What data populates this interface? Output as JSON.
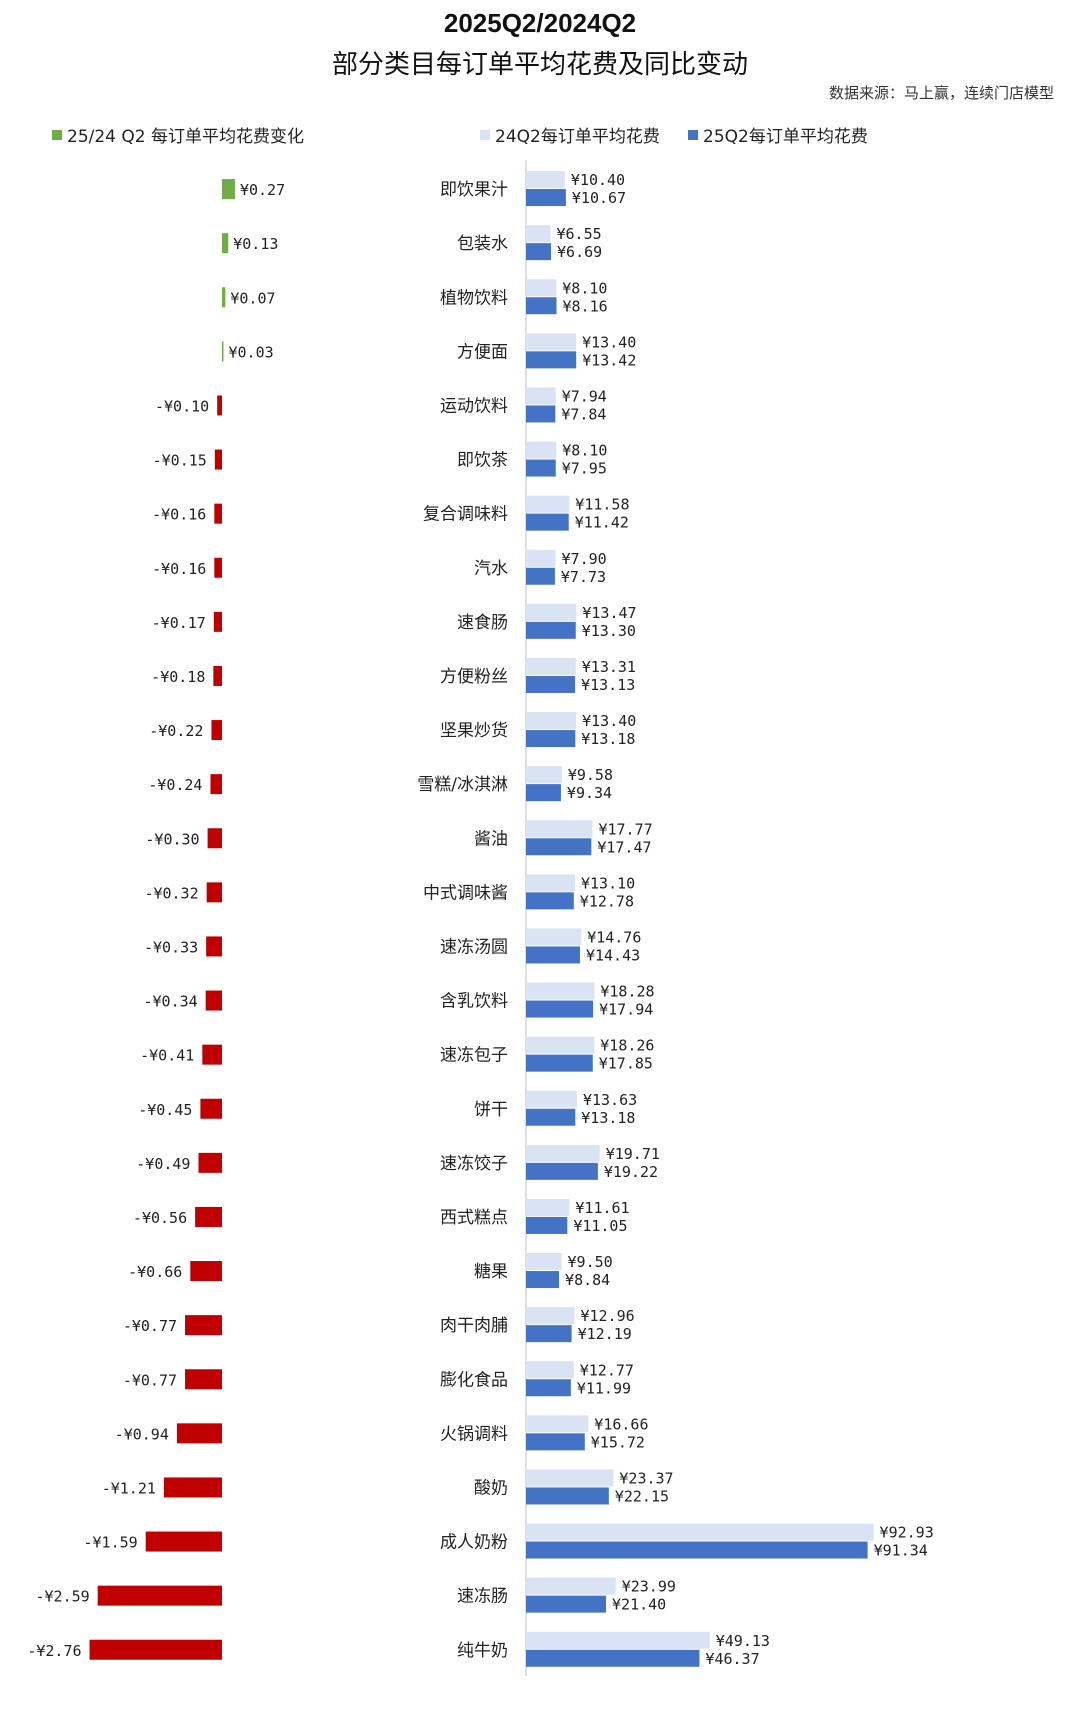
{
  "title_line1": "2025Q2/2024Q2",
  "title_line2": "部分类目每订单平均花费及同比变动",
  "source": "数据来源：马上赢，连续门店模型",
  "colors": {
    "positive": "#70ad47",
    "negative": "#c00000",
    "bar_2024": "#dae3f3",
    "bar_2025": "#4472c4",
    "axis": "#bfbfbf"
  },
  "legend": {
    "change": "25/24 Q2 每订单平均花费变化",
    "q2024": "24Q2每订单平均花费",
    "q2025": "25Q2每订单平均花费"
  },
  "chart_data": {
    "type": "bar",
    "currency": "¥",
    "categories": [
      "即饮果汁",
      "包装水",
      "植物饮料",
      "方便面",
      "运动饮料",
      "即饮茶",
      "复合调味料",
      "汽水",
      "速食肠",
      "方便粉丝",
      "坚果炒货",
      "雪糕/冰淇淋",
      "酱油",
      "中式调味酱",
      "速冻汤圆",
      "含乳饮料",
      "速冻包子",
      "饼干",
      "速冻饺子",
      "西式糕点",
      "糖果",
      "肉干肉脯",
      "膨化食品",
      "火锅调料",
      "酸奶",
      "成人奶粉",
      "速冻肠",
      "纯牛奶"
    ],
    "series": [
      {
        "name": "25/24 Q2 每订单平均花费变化",
        "values": [
          0.27,
          0.13,
          0.07,
          0.03,
          -0.1,
          -0.15,
          -0.16,
          -0.16,
          -0.17,
          -0.18,
          -0.22,
          -0.24,
          -0.3,
          -0.32,
          -0.33,
          -0.34,
          -0.41,
          -0.45,
          -0.49,
          -0.56,
          -0.66,
          -0.77,
          -0.77,
          -0.94,
          -1.21,
          -1.59,
          -2.59,
          -2.76
        ]
      },
      {
        "name": "24Q2每订单平均花费",
        "values": [
          10.4,
          6.55,
          8.1,
          13.4,
          7.94,
          8.1,
          11.58,
          7.9,
          13.47,
          13.31,
          13.4,
          9.58,
          17.77,
          13.1,
          14.76,
          18.28,
          18.26,
          13.63,
          19.71,
          11.61,
          9.5,
          12.96,
          12.77,
          16.66,
          23.37,
          92.93,
          23.99,
          49.13
        ]
      },
      {
        "name": "25Q2每订单平均花费",
        "values": [
          10.67,
          6.69,
          8.16,
          13.42,
          7.84,
          7.95,
          11.42,
          7.73,
          13.3,
          13.13,
          13.18,
          9.34,
          17.47,
          12.78,
          14.43,
          17.94,
          17.85,
          13.18,
          19.22,
          11.05,
          8.84,
          12.19,
          11.99,
          15.72,
          22.15,
          91.34,
          21.4,
          46.37
        ]
      }
    ]
  }
}
